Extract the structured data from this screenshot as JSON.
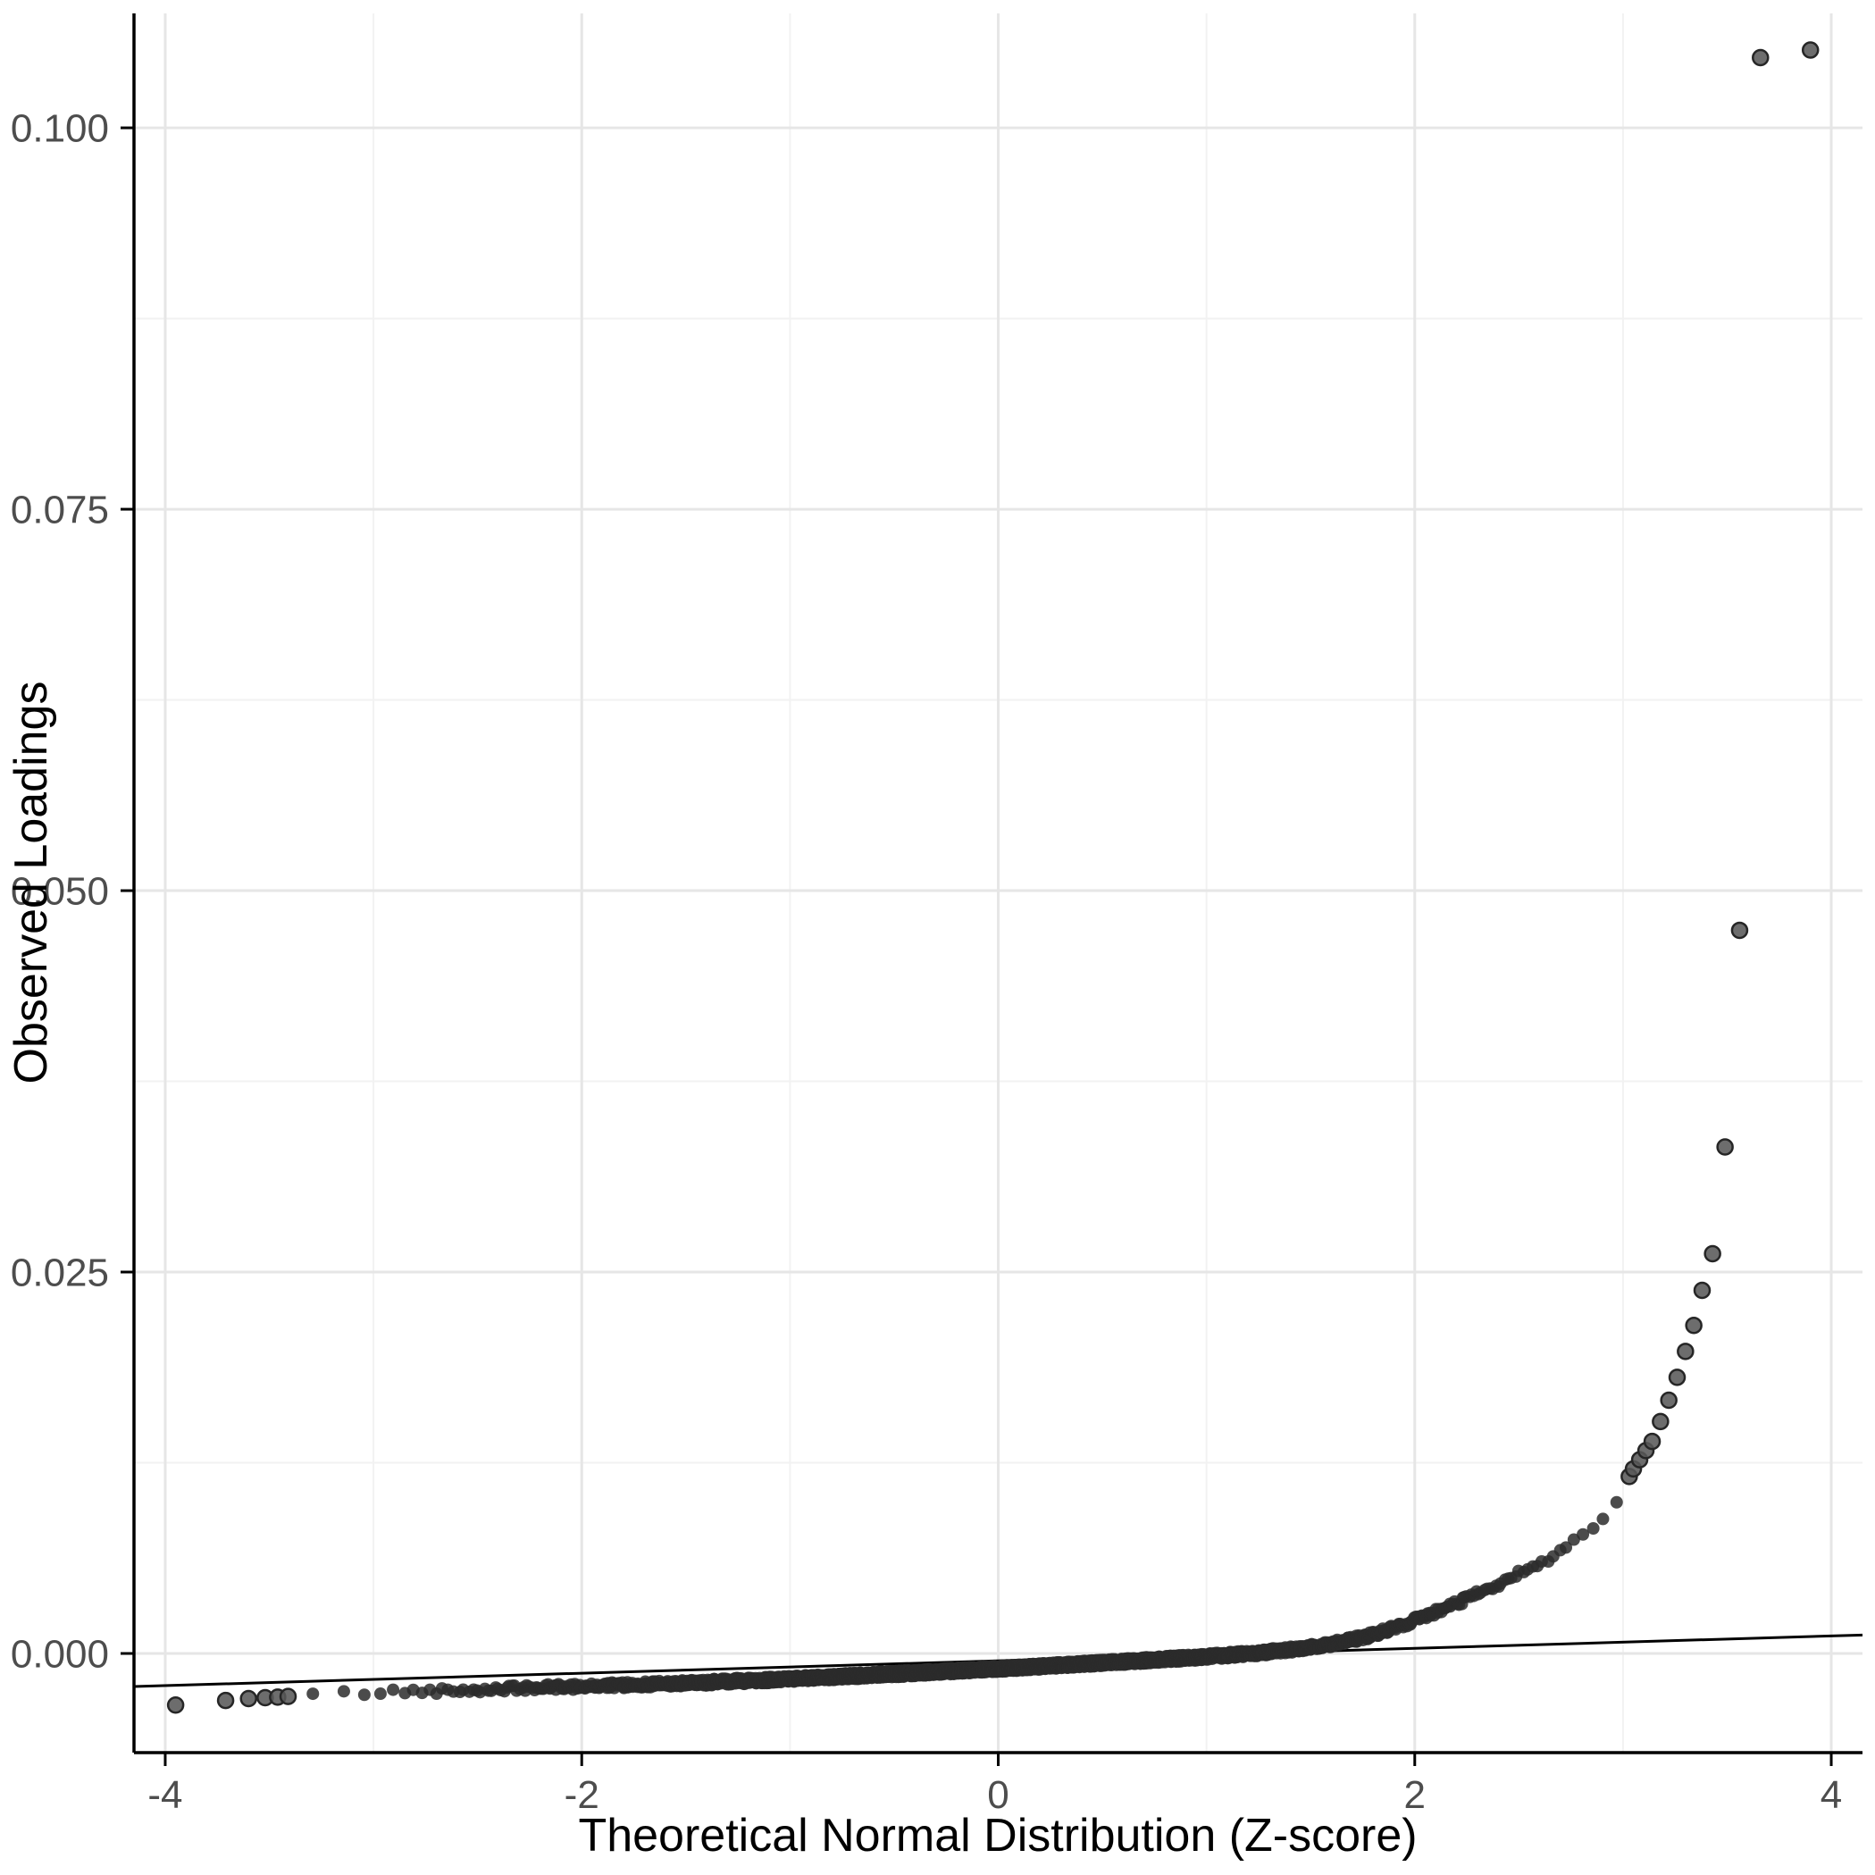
{
  "chart_data": {
    "type": "scatter",
    "title": "",
    "xlabel": "Theoretical Normal Distribution (Z-score)",
    "ylabel": "Observed Loadings",
    "xlim": [
      -4.15,
      4.15
    ],
    "ylim": [
      -0.0065,
      0.1075
    ],
    "x_ticks": [
      {
        "v": -4,
        "label": "-4"
      },
      {
        "v": -2,
        "label": "-2"
      },
      {
        "v": 0,
        "label": "0"
      },
      {
        "v": 2,
        "label": "2"
      },
      {
        "v": 4,
        "label": "4"
      }
    ],
    "y_ticks": [
      {
        "v": 0.0,
        "label": "0.000"
      },
      {
        "v": 0.025,
        "label": "0.025"
      },
      {
        "v": 0.05,
        "label": "0.050"
      },
      {
        "v": 0.075,
        "label": "0.075"
      },
      {
        "v": 0.1,
        "label": "0.100"
      }
    ],
    "x_minor": [
      -3,
      -1,
      1,
      3
    ],
    "y_minor": [
      0.0125,
      0.0375,
      0.0625,
      0.0875
    ],
    "grid": {
      "major_color": "#e6e6e6",
      "minor_color": "#f2f2f2",
      "major_width": 3,
      "minor_width": 2
    },
    "panel_background": "#ffffff",
    "axis_line_color": "#000000",
    "tick_color": "#000000",
    "tick_label_color": "#4d4d4d",
    "reference_line": {
      "x1": -4.15,
      "y1": -0.00217,
      "x2": 4.15,
      "y2": 0.00121,
      "color": "#000000",
      "width": 3
    },
    "points": {
      "marker": {
        "band_radius": 7,
        "band_color": "#2b2b2b",
        "band_opacity": 0.85,
        "outlier_radius": 8.5,
        "outlier_fill": "#595959",
        "outlier_stroke": "#262626",
        "outlier_opacity": 0.88
      },
      "band": {
        "count": 3000,
        "seed": 42,
        "range": [
          -3.38,
          3.02
        ],
        "jitter_x": 0.005,
        "jitter_y": 0.0002,
        "anchors": [
          [
            -3.38,
            -0.00272
          ],
          [
            -3.0,
            -0.00256
          ],
          [
            -2.5,
            -0.00236
          ],
          [
            -2.0,
            -0.00216
          ],
          [
            -1.5,
            -0.00195
          ],
          [
            -1.0,
            -0.00168
          ],
          [
            -0.5,
            -0.00135
          ],
          [
            0.0,
            -0.001
          ],
          [
            0.5,
            -0.00062
          ],
          [
            1.0,
            -0.00022
          ],
          [
            1.25,
            4e-05
          ],
          [
            1.45,
            0.00032
          ],
          [
            1.6,
            0.00062
          ],
          [
            1.75,
            0.00105
          ],
          [
            1.9,
            0.00165
          ],
          [
            2.05,
            0.00245
          ],
          [
            2.2,
            0.0033
          ],
          [
            2.35,
            0.0042
          ],
          [
            2.5,
            0.0052
          ],
          [
            2.65,
            0.0063
          ],
          [
            2.8,
            0.0077
          ],
          [
            2.9,
            0.0089
          ],
          [
            3.0,
            0.0105
          ],
          [
            3.02,
            0.0109
          ]
        ]
      },
      "left_outliers": [
        [
          -3.95,
          -0.00338
        ],
        [
          -3.71,
          -0.00308
        ],
        [
          -3.6,
          -0.00296
        ],
        [
          -3.52,
          -0.0029
        ],
        [
          -3.46,
          -0.00286
        ],
        [
          -3.41,
          -0.00282
        ]
      ],
      "right_outliers": [
        [
          3.03,
          0.0116
        ],
        [
          3.05,
          0.0121
        ],
        [
          3.08,
          0.0127
        ],
        [
          3.11,
          0.0133
        ],
        [
          3.14,
          0.0139
        ],
        [
          3.18,
          0.0152
        ],
        [
          3.22,
          0.0166
        ],
        [
          3.26,
          0.0181
        ],
        [
          3.3,
          0.0198
        ],
        [
          3.34,
          0.0215
        ],
        [
          3.38,
          0.0238
        ],
        [
          3.43,
          0.0262
        ],
        [
          3.49,
          0.0332
        ],
        [
          3.56,
          0.0474
        ],
        [
          3.66,
          0.1046
        ],
        [
          3.9,
          0.1051
        ]
      ]
    }
  }
}
